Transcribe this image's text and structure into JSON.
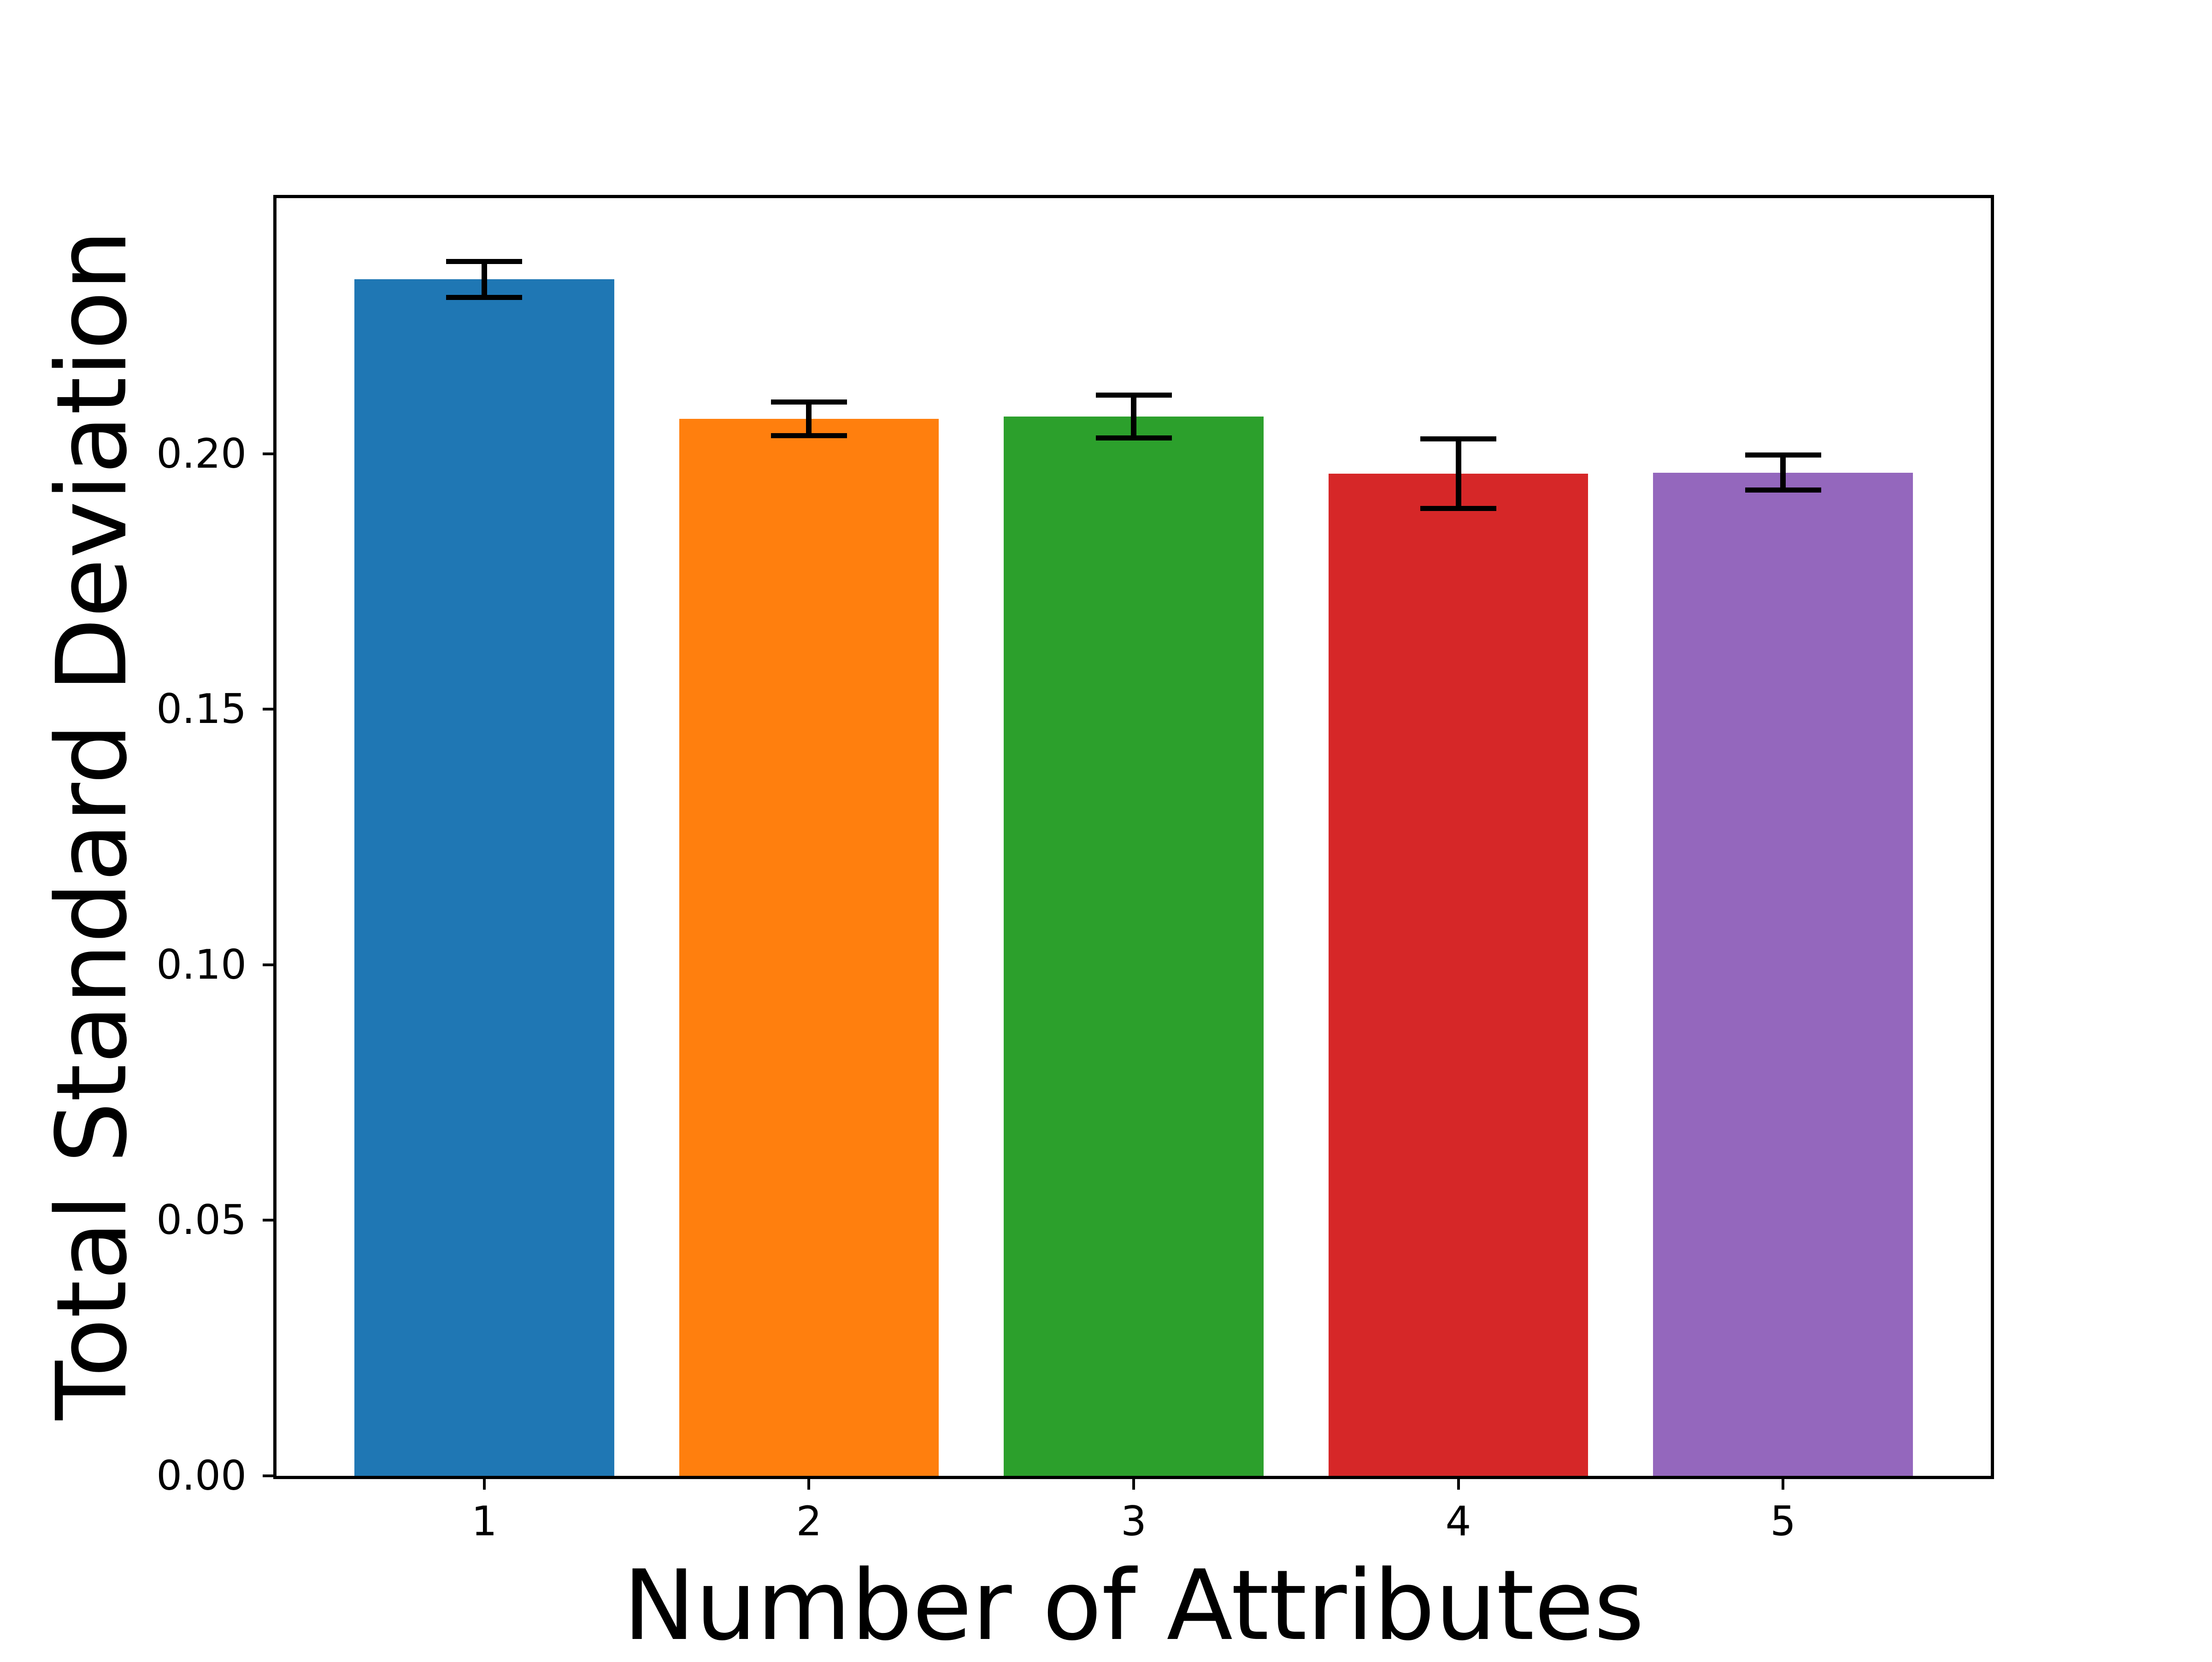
{
  "figure": {
    "background": "#ffffff"
  },
  "chart_data": {
    "type": "bar",
    "title": "",
    "xlabel": "Number of Attributes",
    "ylabel": "Total Standard Deviation",
    "categories": [
      "1",
      "2",
      "3",
      "4",
      "5"
    ],
    "x": [
      1,
      2,
      3,
      4,
      5
    ],
    "values": [
      0.2341,
      0.2068,
      0.2073,
      0.1961,
      0.1963
    ],
    "errors": [
      0.0035,
      0.0033,
      0.0042,
      0.0068,
      0.0034
    ],
    "bar_colors": [
      "#1f77b4",
      "#ff7f0e",
      "#2ca02c",
      "#d62728",
      "#9467bd"
    ],
    "error_color": "#000000",
    "ylim": [
      0,
      0.25
    ],
    "xlim": [
      0.36,
      5.64
    ],
    "bar_width": 0.8,
    "yticks": [
      0,
      0.05,
      0.1,
      0.15,
      0.2
    ],
    "ytick_labels": [
      "0.00",
      "0.05",
      "0.10",
      "0.15",
      "0.20"
    ],
    "xtick_labels": [
      "1",
      "2",
      "3",
      "4",
      "5"
    ],
    "grid": false,
    "legend_position": "none"
  }
}
